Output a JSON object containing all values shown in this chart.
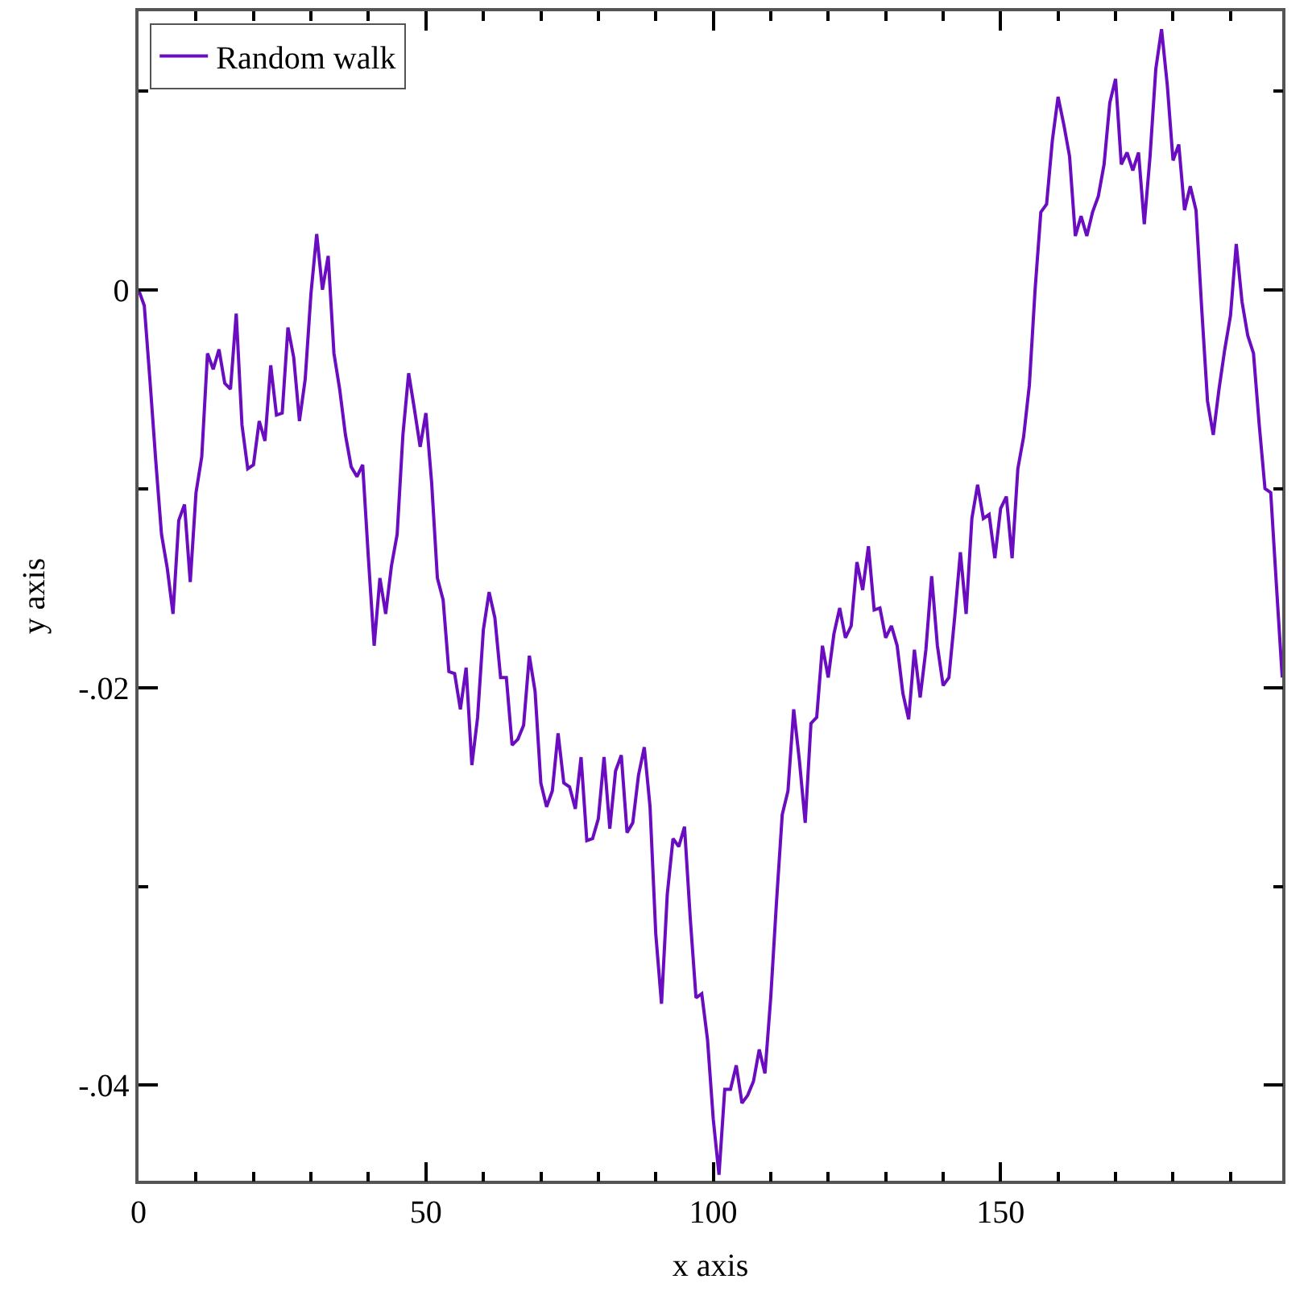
{
  "chart_data": {
    "type": "line",
    "xlabel": "x axis",
    "ylabel": "y axis",
    "x": [
      0,
      1,
      2,
      3,
      4,
      5,
      6,
      7,
      8,
      9,
      10,
      11,
      12,
      13,
      14,
      15,
      16,
      17,
      18,
      19,
      20,
      21,
      22,
      23,
      24,
      25,
      26,
      27,
      28,
      29,
      30,
      31,
      32,
      33,
      34,
      35,
      36,
      37,
      38,
      39,
      40,
      41,
      42,
      43,
      44,
      45,
      46,
      47,
      48,
      49,
      50,
      51,
      52,
      53,
      54,
      55,
      56,
      57,
      58,
      59,
      60,
      61,
      62,
      63,
      64,
      65,
      66,
      67,
      68,
      69,
      70,
      71,
      72,
      73,
      74,
      75,
      76,
      77,
      78,
      79,
      80,
      81,
      82,
      83,
      84,
      85,
      86,
      87,
      88,
      89,
      90,
      91,
      92,
      93,
      94,
      95,
      96,
      97,
      98,
      99,
      100,
      101,
      102,
      103,
      104,
      105,
      106,
      107,
      108,
      109,
      110,
      111,
      112,
      113,
      114,
      115,
      116,
      117,
      118,
      119,
      120,
      121,
      122,
      123,
      124,
      125,
      126,
      127,
      128,
      129,
      130,
      131,
      132,
      133,
      134,
      135,
      136,
      137,
      138,
      139,
      140,
      141,
      142,
      143,
      144,
      145,
      146,
      147,
      148,
      149,
      150,
      151,
      152,
      153,
      154,
      155,
      156,
      157,
      158,
      159,
      160,
      161,
      162,
      163,
      164,
      165,
      166,
      167,
      168,
      169,
      170,
      171,
      172,
      173,
      174,
      175,
      176,
      177,
      178,
      179,
      180,
      181,
      182,
      183,
      184,
      185,
      186,
      187,
      188,
      189,
      190,
      191,
      192,
      193,
      194,
      195,
      196,
      197,
      198,
      199
    ],
    "series": [
      {
        "name": "Random walk",
        "color": "#6a0dc0",
        "values": [
          0,
          -0.0008,
          -0.0046,
          -0.0086,
          -0.0123,
          -0.014,
          -0.0163,
          -0.0116,
          -0.0108,
          -0.0147,
          -0.0102,
          -0.0084,
          -0.0032,
          -0.004,
          -0.003,
          -0.0047,
          -0.005,
          -0.0012,
          -0.0068,
          -0.009,
          -0.0088,
          -0.0066,
          -0.0076,
          -0.0038,
          -0.0063,
          -0.0062,
          -0.0019,
          -0.0034,
          -0.0066,
          -0.0045,
          -0.0002,
          0.0028,
          0,
          0.0017,
          -0.0032,
          -0.005,
          -0.0073,
          -0.0089,
          -0.0094,
          -0.0088,
          -0.0135,
          -0.0179,
          -0.0145,
          -0.0163,
          -0.0139,
          -0.0123,
          -0.0073,
          -0.0042,
          -0.006,
          -0.0079,
          -0.0062,
          -0.0097,
          -0.0145,
          -0.0156,
          -0.0192,
          -0.0193,
          -0.0211,
          -0.019,
          -0.0239,
          -0.0215,
          -0.0171,
          -0.0152,
          -0.0165,
          -0.0195,
          -0.0195,
          -0.0229,
          -0.0226,
          -0.0219,
          -0.0184,
          -0.0202,
          -0.0248,
          -0.026,
          -0.0252,
          -0.0223,
          -0.0248,
          -0.025,
          -0.0261,
          -0.0235,
          -0.0277,
          -0.0276,
          -0.0266,
          -0.0235,
          -0.0271,
          -0.0242,
          -0.0234,
          -0.0273,
          -0.0268,
          -0.0244,
          -0.023,
          -0.026,
          -0.0324,
          -0.0359,
          -0.0304,
          -0.0276,
          -0.028,
          -0.027,
          -0.0316,
          -0.0356,
          -0.0354,
          -0.0377,
          -0.0417,
          -0.0445,
          -0.0402,
          -0.0402,
          -0.039,
          -0.0409,
          -0.0405,
          -0.0398,
          -0.0382,
          -0.0394,
          -0.0356,
          -0.0308,
          -0.0264,
          -0.0252,
          -0.0211,
          -0.0237,
          -0.0268,
          -0.0218,
          -0.0215,
          -0.0179,
          -0.0195,
          -0.0173,
          -0.016,
          -0.0175,
          -0.0169,
          -0.0137,
          -0.0151,
          -0.0129,
          -0.0161,
          -0.016,
          -0.0175,
          -0.0169,
          -0.0179,
          -0.0203,
          -0.0216,
          -0.0181,
          -0.0205,
          -0.0181,
          -0.0144,
          -0.0179,
          -0.0199,
          -0.0195,
          -0.0165,
          -0.0132,
          -0.0163,
          -0.0115,
          -0.0098,
          -0.0115,
          -0.0113,
          -0.0135,
          -0.011,
          -0.0104,
          -0.0135,
          -0.009,
          -0.0074,
          -0.0048,
          0,
          0.0039,
          0.0043,
          0.0075,
          0.0097,
          0.0083,
          0.0067,
          0.0027,
          0.0037,
          0.0027,
          0.0039,
          0.0047,
          0.0063,
          0.0094,
          0.0106,
          0.0063,
          0.0069,
          0.006,
          0.0069,
          0.0033,
          0.0067,
          0.0111,
          0.0131,
          0.0103,
          0.0065,
          0.0073,
          0.004,
          0.0052,
          0.004,
          -0.001,
          -0.0056,
          -0.0073,
          -0.005,
          -0.003,
          -0.0013,
          0.0023,
          -0.0006,
          -0.0023,
          -0.0032,
          -0.0068,
          -0.01,
          -0.0102,
          -0.0149,
          -0.0195
        ]
      }
    ],
    "xlim": [
      0,
      199
    ],
    "xticks": [
      0,
      {
        "value": 10,
        "label": null
      },
      {
        "value": 20,
        "label": null
      },
      {
        "value": 30,
        "label": null
      },
      {
        "value": 40,
        "label": null
      },
      50,
      {
        "value": 60,
        "label": null
      },
      {
        "value": 70,
        "label": null
      },
      {
        "value": 80,
        "label": null
      },
      {
        "value": 90,
        "label": null
      },
      100,
      {
        "value": 110,
        "label": null
      },
      {
        "value": 120,
        "label": null
      },
      {
        "value": 130,
        "label": null
      },
      {
        "value": 140,
        "label": null
      },
      150,
      {
        "value": 160,
        "label": null
      },
      {
        "value": 170,
        "label": null
      },
      {
        "value": 180,
        "label": null
      },
      {
        "value": 190,
        "label": null
      }
    ],
    "ylim": [
      -0.0448,
      0.014
    ],
    "yticks": [
      {
        "value": -0.04,
        "label": "-.04"
      },
      {
        "value": -0.03,
        "label": null
      },
      {
        "value": -0.02,
        "label": "-.02"
      },
      {
        "value": -0.01,
        "label": null
      },
      0,
      {
        "value": 0.01,
        "label": null
      }
    ],
    "legend": "top left",
    "marker": "none",
    "line_style": "solid"
  }
}
